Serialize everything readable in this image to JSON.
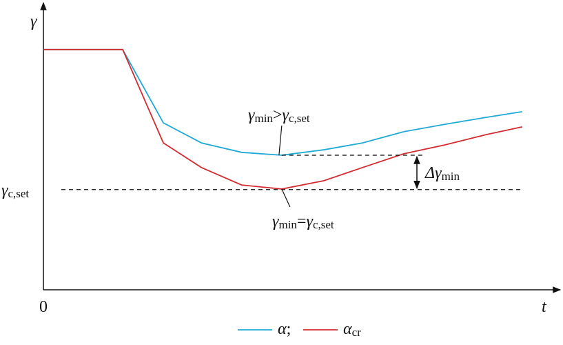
{
  "chart_data": {
    "type": "line",
    "y_label": "γ",
    "x_label": "t",
    "x": [
      0,
      15.4,
      23.3,
      30.7,
      38.5,
      46.3,
      54.5,
      62,
      70,
      78,
      86,
      93
    ],
    "xlim": [
      0,
      100
    ],
    "xticks": [
      0
    ],
    "ylim": [
      0,
      100
    ],
    "yticks": [
      {
        "value": 35,
        "label": "γc,set"
      }
    ],
    "series": [
      {
        "name": "α;",
        "color": "#1fa9d6",
        "values": [
          83.9,
          83.9,
          58.3,
          51.3,
          48.0,
          47.0,
          48.9,
          51.3,
          55.2,
          57.8,
          60.2,
          62.2
        ]
      },
      {
        "name": "αcr",
        "color": "#d22b30",
        "values": [
          83.9,
          83.9,
          51.3,
          42.7,
          36.6,
          35.2,
          38.1,
          42.7,
          47.5,
          50.6,
          54.2,
          56.9
        ]
      }
    ],
    "annotations": [
      "γmin>γc,set",
      "γmin=γc,set",
      "Δγmin"
    ]
  }
}
